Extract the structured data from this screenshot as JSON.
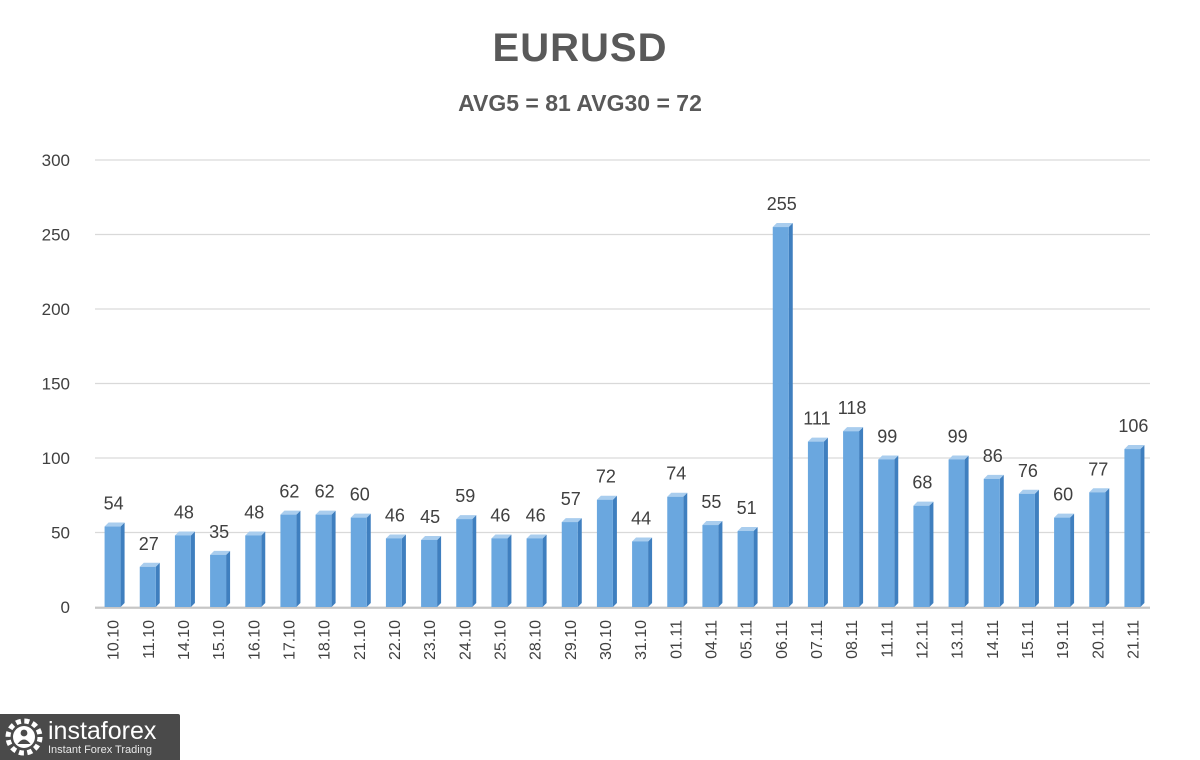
{
  "chart_data": {
    "type": "bar",
    "title": "EURUSD",
    "subtitle": "AVG5 = 81 AVG30 = 72",
    "xlabel": "",
    "ylabel": "",
    "ylim": [
      0,
      300
    ],
    "yticks": [
      "0",
      "50",
      "100",
      "150",
      "200",
      "250",
      "300"
    ],
    "grid": true,
    "legend": "none",
    "categories": [
      "10.10",
      "11.10",
      "14.10",
      "15.10",
      "16.10",
      "17.10",
      "18.10",
      "21.10",
      "22.10",
      "23.10",
      "24.10",
      "25.10",
      "28.10",
      "29.10",
      "30.10",
      "31.10",
      "01.11",
      "04.11",
      "05.11",
      "06.11",
      "07.11",
      "08.11",
      "11.11",
      "12.11",
      "13.11",
      "14.11",
      "15.11",
      "19.11",
      "20.11",
      "21.11"
    ],
    "values": [
      54,
      27,
      48,
      35,
      48,
      62,
      62,
      60,
      46,
      45,
      59,
      46,
      46,
      57,
      72,
      44,
      74,
      55,
      51,
      255,
      111,
      118,
      99,
      68,
      99,
      86,
      76,
      60,
      77,
      106
    ],
    "colors": {
      "bar_front": "#6aa7df",
      "bar_side": "#3f7fbf",
      "bar_top": "#a9cdee",
      "grid": "#d9d9d9",
      "text": "#404040"
    }
  },
  "watermark": {
    "brand": "instaforex",
    "tagline": "Instant Forex Trading"
  }
}
